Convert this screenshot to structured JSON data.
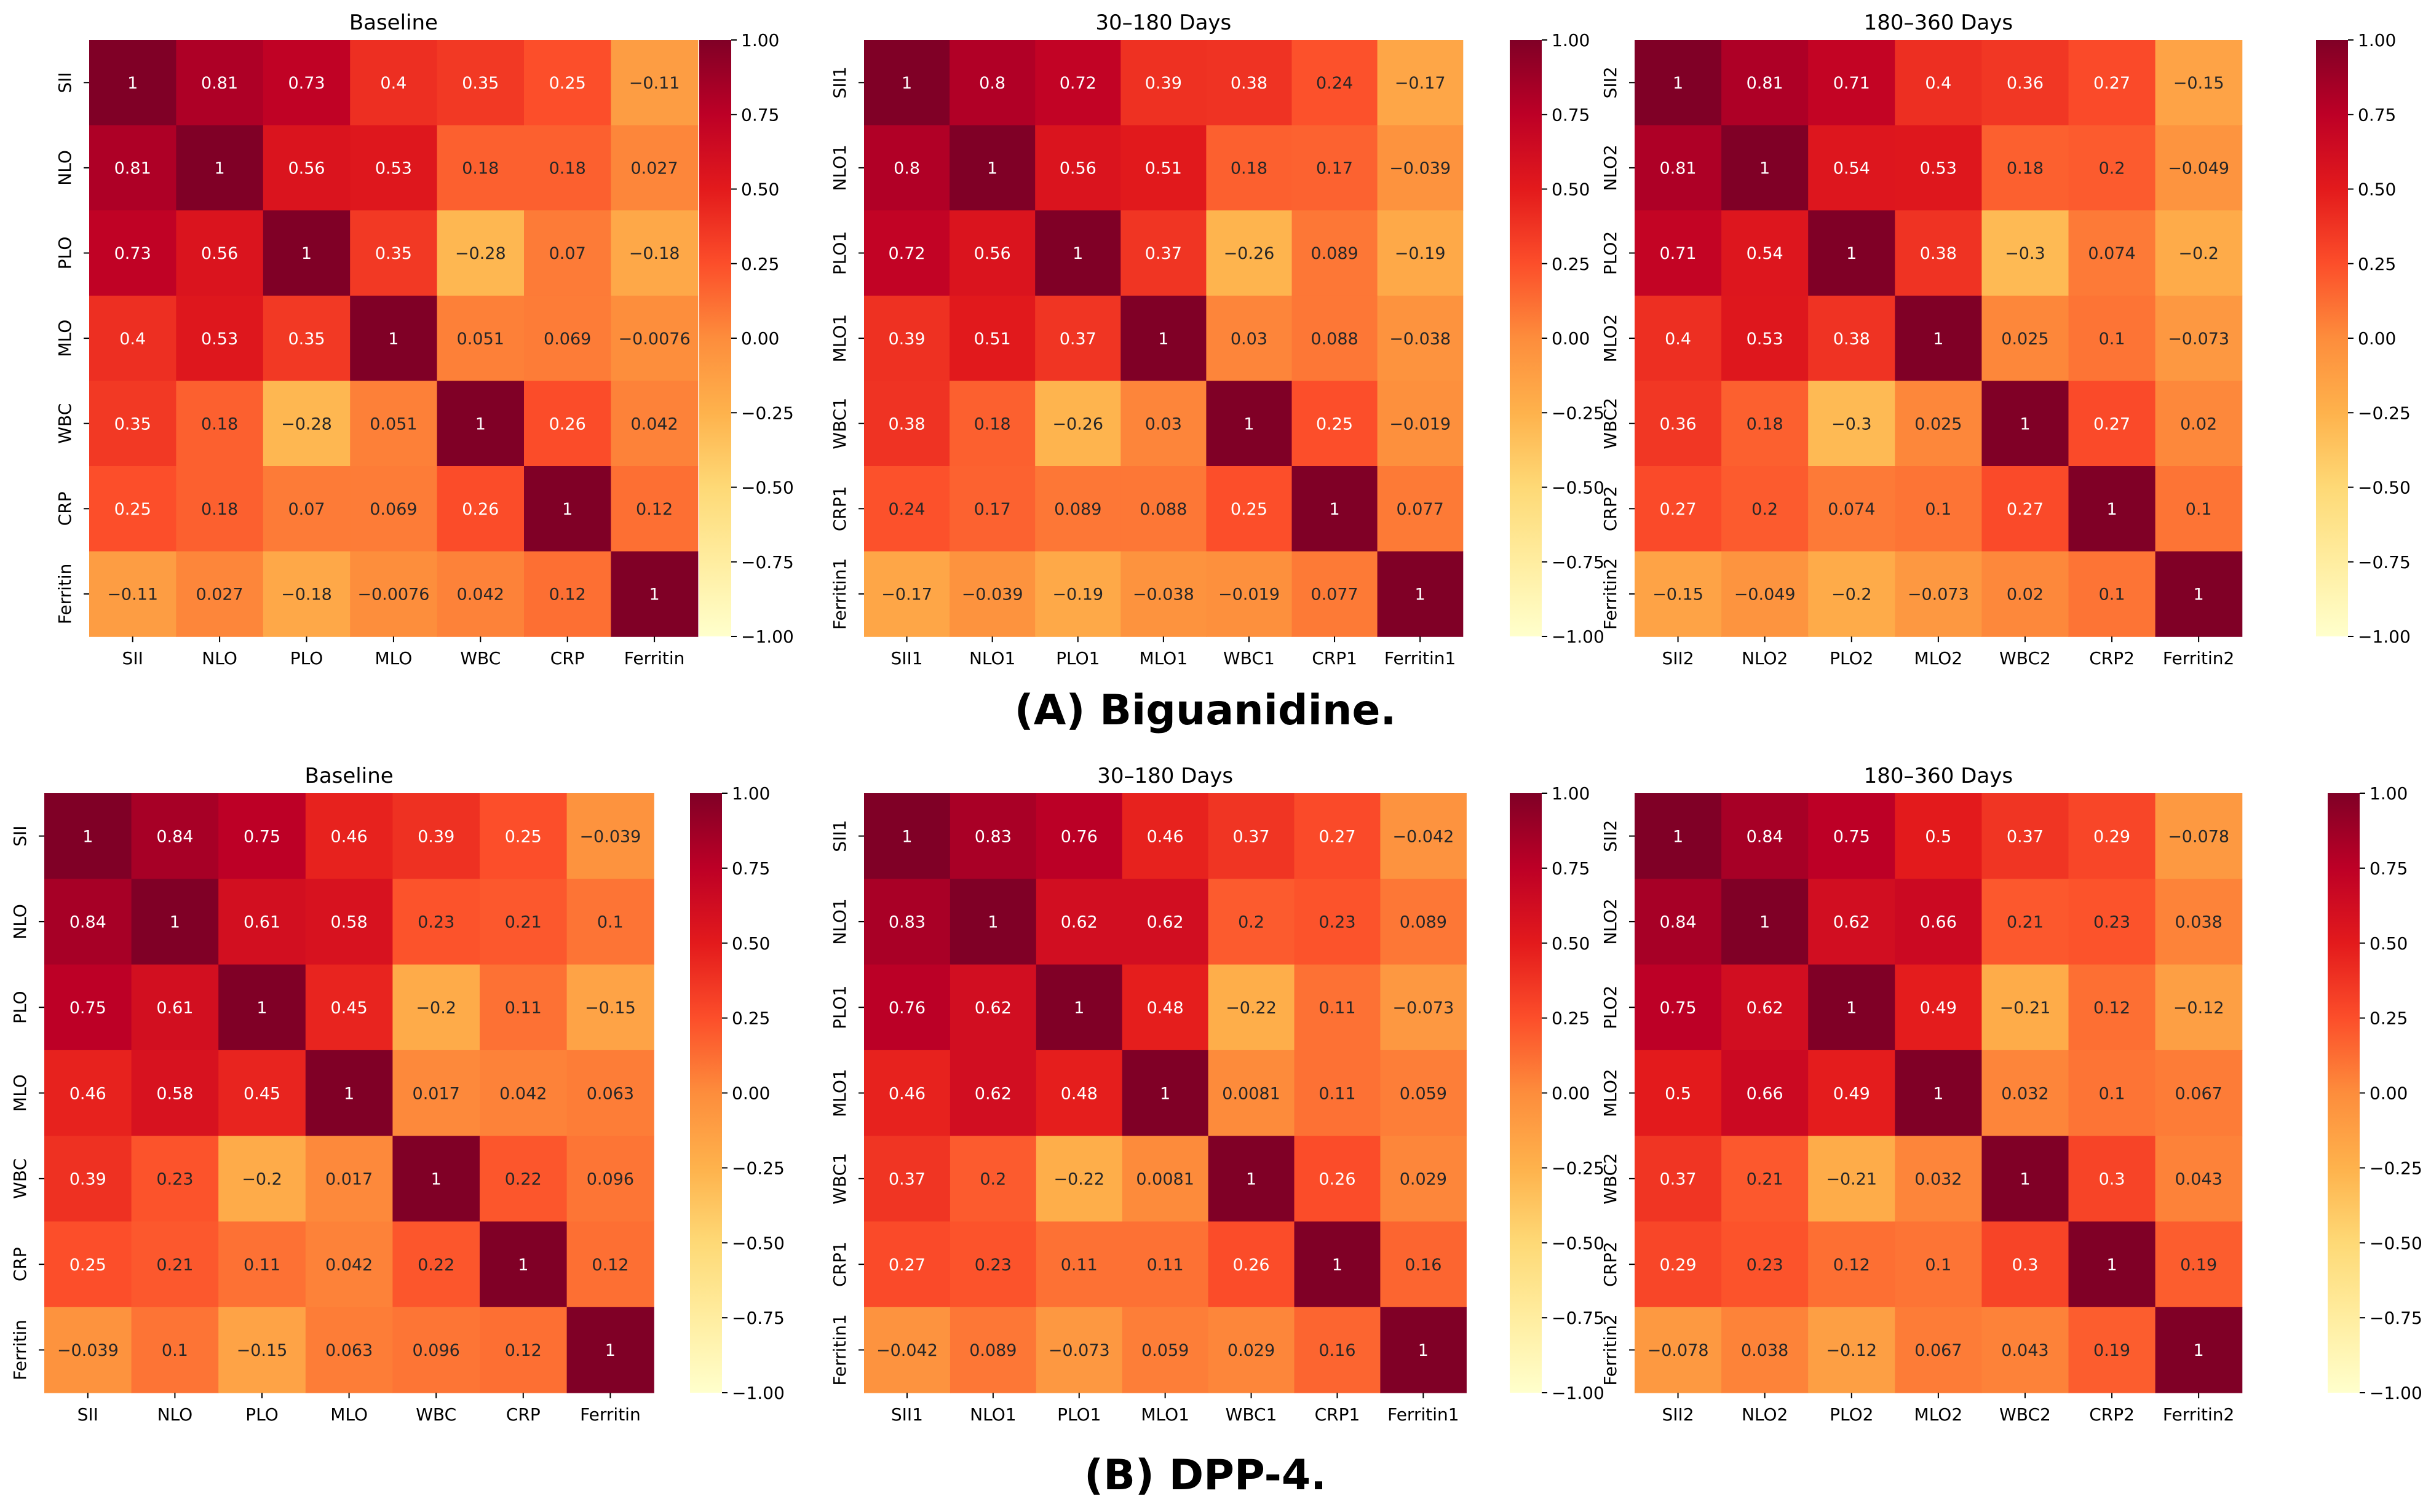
{
  "figure": {
    "panels": [
      {
        "caption_label": "(A)",
        "caption_text": "Biguanidine."
      },
      {
        "caption_label": "(B)",
        "caption_text": "DPP-4."
      }
    ],
    "colorbar_ticks": [
      "1.00",
      "0.75",
      "0.50",
      "0.25",
      "0.00",
      "−0.25",
      "−0.50",
      "−0.75",
      "−1.00"
    ],
    "colormap": [
      "#ffffcc",
      "#ffeda0",
      "#fed976",
      "#feb24c",
      "#fd8d3c",
      "#fc4e2a",
      "#e31a1c",
      "#bd0026",
      "#800026"
    ],
    "value_range": [
      -1,
      1
    ]
  },
  "chart_data": [
    {
      "type": "heatmap",
      "title": "Baseline",
      "labels": [
        "SII",
        "NLO",
        "PLO",
        "MLO",
        "WBC",
        "CRP",
        "Ferritin"
      ],
      "cells": [
        [
          "1",
          "0.81",
          "0.73",
          "0.4",
          "0.35",
          "0.25",
          "−0.11"
        ],
        [
          "0.81",
          "1",
          "0.56",
          "0.53",
          "0.18",
          "0.18",
          "0.027"
        ],
        [
          "0.73",
          "0.56",
          "1",
          "0.35",
          "−0.28",
          "0.07",
          "−0.18"
        ],
        [
          "0.4",
          "0.53",
          "0.35",
          "1",
          "0.051",
          "0.069",
          "−0.0076"
        ],
        [
          "0.35",
          "0.18",
          "−0.28",
          "0.051",
          "1",
          "0.26",
          "0.042"
        ],
        [
          "0.25",
          "0.18",
          "0.07",
          "0.069",
          "0.26",
          "1",
          "0.12"
        ],
        [
          "−0.11",
          "0.027",
          "−0.18",
          "−0.0076",
          "0.042",
          "0.12",
          "1"
        ]
      ]
    },
    {
      "type": "heatmap",
      "title": "30–180 Days",
      "labels": [
        "SII1",
        "NLO1",
        "PLO1",
        "MLO1",
        "WBC1",
        "CRP1",
        "Ferritin1"
      ],
      "cells": [
        [
          "1",
          "0.8",
          "0.72",
          "0.39",
          "0.38",
          "0.24",
          "−0.17"
        ],
        [
          "0.8",
          "1",
          "0.56",
          "0.51",
          "0.18",
          "0.17",
          "−0.039"
        ],
        [
          "0.72",
          "0.56",
          "1",
          "0.37",
          "−0.26",
          "0.089",
          "−0.19"
        ],
        [
          "0.39",
          "0.51",
          "0.37",
          "1",
          "0.03",
          "0.088",
          "−0.038"
        ],
        [
          "0.38",
          "0.18",
          "−0.26",
          "0.03",
          "1",
          "0.25",
          "−0.019"
        ],
        [
          "0.24",
          "0.17",
          "0.089",
          "0.088",
          "0.25",
          "1",
          "0.077"
        ],
        [
          "−0.17",
          "−0.039",
          "−0.19",
          "−0.038",
          "−0.019",
          "0.077",
          "1"
        ]
      ]
    },
    {
      "type": "heatmap",
      "title": "180–360 Days",
      "labels": [
        "SII2",
        "NLO2",
        "PLO2",
        "MLO2",
        "WBC2",
        "CRP2",
        "Ferritin2"
      ],
      "cells": [
        [
          "1",
          "0.81",
          "0.71",
          "0.4",
          "0.36",
          "0.27",
          "−0.15"
        ],
        [
          "0.81",
          "1",
          "0.54",
          "0.53",
          "0.18",
          "0.2",
          "−0.049"
        ],
        [
          "0.71",
          "0.54",
          "1",
          "0.38",
          "−0.3",
          "0.074",
          "−0.2"
        ],
        [
          "0.4",
          "0.53",
          "0.38",
          "1",
          "0.025",
          "0.1",
          "−0.073"
        ],
        [
          "0.36",
          "0.18",
          "−0.3",
          "0.025",
          "1",
          "0.27",
          "0.02"
        ],
        [
          "0.27",
          "0.2",
          "0.074",
          "0.1",
          "0.27",
          "1",
          "0.1"
        ],
        [
          "−0.15",
          "−0.049",
          "−0.2",
          "−0.073",
          "0.02",
          "0.1",
          "1"
        ]
      ]
    },
    {
      "type": "heatmap",
      "title": "Baseline",
      "labels": [
        "SII",
        "NLO",
        "PLO",
        "MLO",
        "WBC",
        "CRP",
        "Ferritin"
      ],
      "cells": [
        [
          "1",
          "0.84",
          "0.75",
          "0.46",
          "0.39",
          "0.25",
          "−0.039"
        ],
        [
          "0.84",
          "1",
          "0.61",
          "0.58",
          "0.23",
          "0.21",
          "0.1"
        ],
        [
          "0.75",
          "0.61",
          "1",
          "0.45",
          "−0.2",
          "0.11",
          "−0.15"
        ],
        [
          "0.46",
          "0.58",
          "0.45",
          "1",
          "0.017",
          "0.042",
          "0.063"
        ],
        [
          "0.39",
          "0.23",
          "−0.2",
          "0.017",
          "1",
          "0.22",
          "0.096"
        ],
        [
          "0.25",
          "0.21",
          "0.11",
          "0.042",
          "0.22",
          "1",
          "0.12"
        ],
        [
          "−0.039",
          "0.1",
          "−0.15",
          "0.063",
          "0.096",
          "0.12",
          "1"
        ]
      ]
    },
    {
      "type": "heatmap",
      "title": "30–180 Days",
      "labels": [
        "SII1",
        "NLO1",
        "PLO1",
        "MLO1",
        "WBC1",
        "CRP1",
        "Ferritin1"
      ],
      "cells": [
        [
          "1",
          "0.83",
          "0.76",
          "0.46",
          "0.37",
          "0.27",
          "−0.042"
        ],
        [
          "0.83",
          "1",
          "0.62",
          "0.62",
          "0.2",
          "0.23",
          "0.089"
        ],
        [
          "0.76",
          "0.62",
          "1",
          "0.48",
          "−0.22",
          "0.11",
          "−0.073"
        ],
        [
          "0.46",
          "0.62",
          "0.48",
          "1",
          "0.0081",
          "0.11",
          "0.059"
        ],
        [
          "0.37",
          "0.2",
          "−0.22",
          "0.0081",
          "1",
          "0.26",
          "0.029"
        ],
        [
          "0.27",
          "0.23",
          "0.11",
          "0.11",
          "0.26",
          "1",
          "0.16"
        ],
        [
          "−0.042",
          "0.089",
          "−0.073",
          "0.059",
          "0.029",
          "0.16",
          "1"
        ]
      ]
    },
    {
      "type": "heatmap",
      "title": "180–360 Days",
      "labels": [
        "SII2",
        "NLO2",
        "PLO2",
        "MLO2",
        "WBC2",
        "CRP2",
        "Ferritin2"
      ],
      "cells": [
        [
          "1",
          "0.84",
          "0.75",
          "0.5",
          "0.37",
          "0.29",
          "−0.078"
        ],
        [
          "0.84",
          "1",
          "0.62",
          "0.66",
          "0.21",
          "0.23",
          "0.038"
        ],
        [
          "0.75",
          "0.62",
          "1",
          "0.49",
          "−0.21",
          "0.12",
          "−0.12"
        ],
        [
          "0.5",
          "0.66",
          "0.49",
          "1",
          "0.032",
          "0.1",
          "0.067"
        ],
        [
          "0.37",
          "0.21",
          "−0.21",
          "0.032",
          "1",
          "0.3",
          "0.043"
        ],
        [
          "0.29",
          "0.23",
          "0.12",
          "0.1",
          "0.3",
          "1",
          "0.19"
        ],
        [
          "−0.078",
          "0.038",
          "−0.12",
          "0.067",
          "0.043",
          "0.19",
          "1"
        ]
      ]
    }
  ]
}
